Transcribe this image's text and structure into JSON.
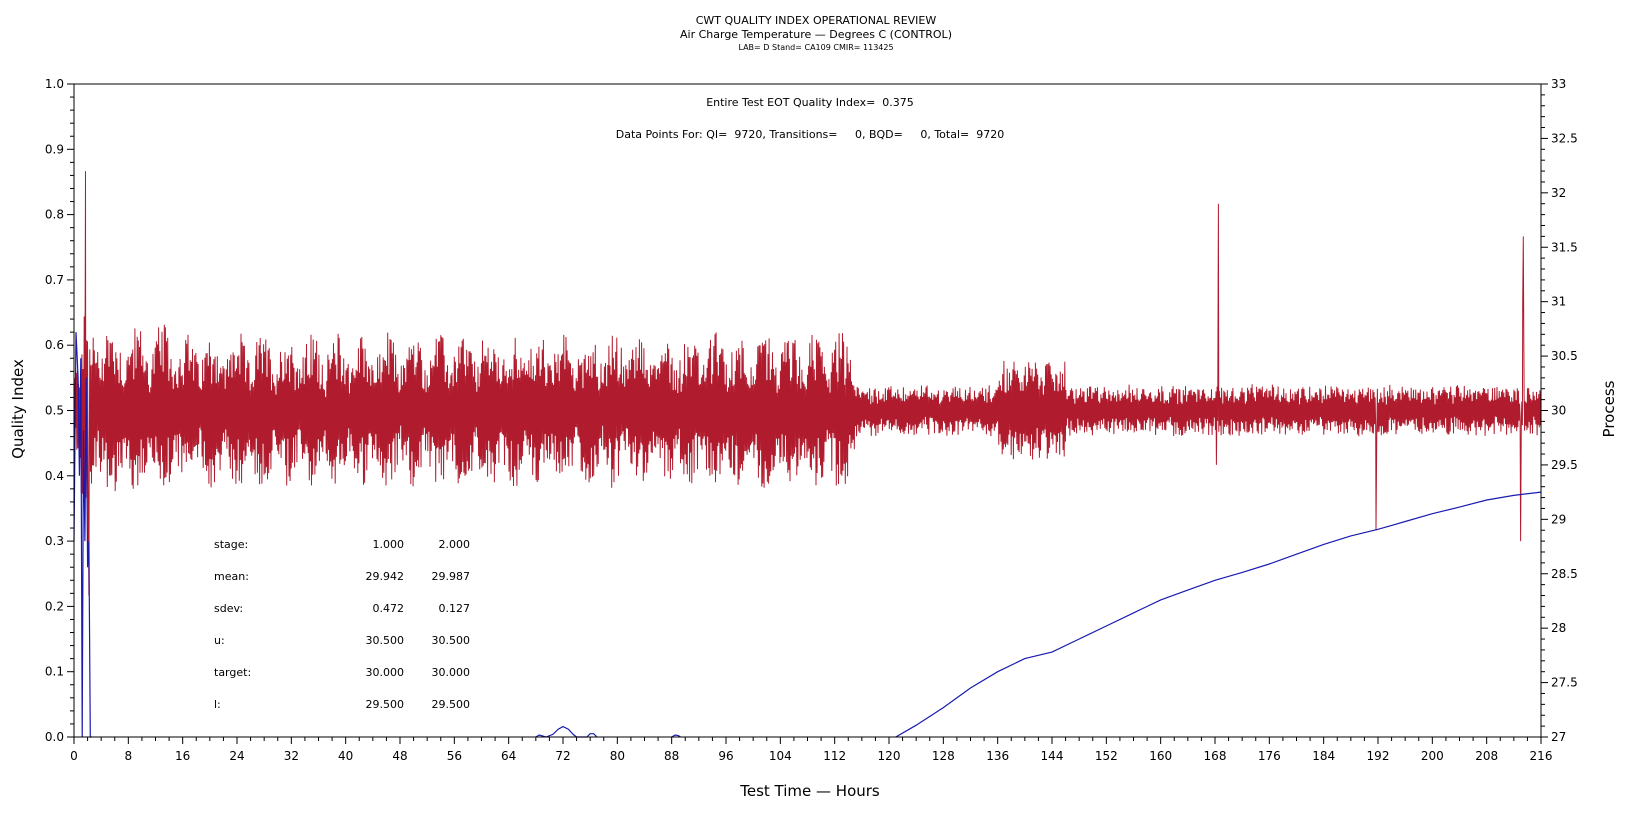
{
  "chart_data": {
    "type": "line",
    "title": "CWT QUALITY INDEX OPERATIONAL REVIEW",
    "subtitle": "Air Charge Temperature — Degrees C (CONTROL)",
    "subtitle2": "LAB= D Stand= CA109 CMIR= 113425",
    "xlabel": "Test Time — Hours",
    "ylabel": "Quality Index",
    "y2label": "Process",
    "xlim": [
      0,
      216
    ],
    "ylim": [
      0.0,
      1.0
    ],
    "y2lim": [
      27,
      33
    ],
    "x_ticks": [
      "0",
      "8",
      "16",
      "24",
      "32",
      "40",
      "48",
      "56",
      "64",
      "72",
      "80",
      "88",
      "96",
      "104",
      "112",
      "120",
      "128",
      "136",
      "144",
      "152",
      "160",
      "168",
      "176",
      "184",
      "192",
      "200",
      "208",
      "216"
    ],
    "y_ticks": [
      "0.0",
      "0.1",
      "0.2",
      "0.3",
      "0.4",
      "0.5",
      "0.6",
      "0.7",
      "0.8",
      "0.9",
      "1.0"
    ],
    "y2_ticks": [
      "27",
      "27.5",
      "28",
      "28.5",
      "29",
      "29.5",
      "30",
      "30.5",
      "31",
      "31.5",
      "32",
      "32.5",
      "33"
    ],
    "grid": false,
    "annotations": [
      "Entire Test EOT Quality Index=  0.375",
      "Data Points For: QI=  9720, Transitions=     0, BQD=     0, Total=  9720"
    ],
    "stats": {
      "rows": [
        {
          "label": "stage:",
          "v1": "1.000",
          "v2": "2.000"
        },
        {
          "label": "mean:",
          "v1": "29.942",
          "v2": "29.987"
        },
        {
          "label": "sdev:",
          "v1": "0.472",
          "v2": "0.127"
        },
        {
          "label": "u:",
          "v1": "30.500",
          "v2": "30.500"
        },
        {
          "label": "target:",
          "v1": "30.000",
          "v2": "30.000"
        },
        {
          "label": "l:",
          "v1": "29.500",
          "v2": "29.500"
        }
      ]
    },
    "series": [
      {
        "color": "#b01c2e",
        "axis": "right",
        "segments": [
          {
            "x0": 0,
            "x1": 1,
            "amp": 0.6,
            "spike_max": 32.3,
            "spike_min": 28.0
          },
          {
            "x0": 1,
            "x1": 5,
            "amp": 0.9,
            "spike_max": 32.0,
            "spike_min": 27.9
          },
          {
            "x0": 5,
            "x1": 15,
            "amp": 0.8,
            "spike_max": 31.7,
            "spike_min": 29.0
          },
          {
            "x0": 15,
            "x1": 115,
            "amp": 0.72,
            "spike_max": 31.8,
            "spike_min": 29.0
          },
          {
            "x0": 115,
            "x1": 136,
            "amp": 0.22,
            "spike_max": 30.5,
            "spike_min": 29.5
          },
          {
            "x0": 136,
            "x1": 146,
            "amp": 0.45,
            "spike_max": 30.9,
            "spike_min": 29.2
          },
          {
            "x0": 146,
            "x1": 216,
            "amp": 0.22,
            "spike_max": 30.6,
            "spike_min": 29.4
          }
        ],
        "spikes": [
          {
            "x": 168.5,
            "y": 31.9
          },
          {
            "x": 168.2,
            "y": 29.5
          },
          {
            "x": 191.7,
            "y": 28.9
          },
          {
            "x": 213.4,
            "y": 31.6
          },
          {
            "x": 213.0,
            "y": 28.8
          },
          {
            "x": 213.3,
            "y": 31.0
          },
          {
            "x": 1.7,
            "y": 32.2
          },
          {
            "x": 2.2,
            "y": 28.3
          }
        ]
      },
      {
        "color": "#1a1ab0",
        "axis": "left",
        "points": [
          [
            0.0,
            0.3
          ],
          [
            0.3,
            0.62
          ],
          [
            0.6,
            0.55
          ],
          [
            0.8,
            0.4
          ],
          [
            1.0,
            0.58
          ],
          [
            1.2,
            0.0
          ],
          [
            1.4,
            0.47
          ],
          [
            1.6,
            0.3
          ],
          [
            1.8,
            0.55
          ],
          [
            2.0,
            0.26
          ],
          [
            2.2,
            0.3
          ],
          [
            2.4,
            0.0
          ],
          [
            2.6,
            0.0
          ],
          [
            68.0,
            0.0
          ],
          [
            68.5,
            0.003
          ],
          [
            69.5,
            0.0
          ],
          [
            70.5,
            0.004
          ],
          [
            71.3,
            0.012
          ],
          [
            72.0,
            0.016
          ],
          [
            72.8,
            0.012
          ],
          [
            73.5,
            0.004
          ],
          [
            74.0,
            0.0
          ],
          [
            75.5,
            0.0
          ],
          [
            76.0,
            0.005
          ],
          [
            76.5,
            0.005
          ],
          [
            77.0,
            0.0
          ],
          [
            88.0,
            0.0
          ],
          [
            88.5,
            0.003
          ],
          [
            89.0,
            0.002
          ],
          [
            89.3,
            0.0
          ],
          [
            121.0,
            0.0
          ],
          [
            124.0,
            0.018
          ],
          [
            128.0,
            0.045
          ],
          [
            132.0,
            0.075
          ],
          [
            136.0,
            0.1
          ],
          [
            140.0,
            0.12
          ],
          [
            144.0,
            0.13
          ],
          [
            148.0,
            0.15
          ],
          [
            152.0,
            0.17
          ],
          [
            156.0,
            0.19
          ],
          [
            160.0,
            0.21
          ],
          [
            164.0,
            0.225
          ],
          [
            168.0,
            0.24
          ],
          [
            172.0,
            0.252
          ],
          [
            176.0,
            0.265
          ],
          [
            180.0,
            0.28
          ],
          [
            184.0,
            0.295
          ],
          [
            188.0,
            0.308
          ],
          [
            192.0,
            0.318
          ],
          [
            196.0,
            0.33
          ],
          [
            200.0,
            0.342
          ],
          [
            204.0,
            0.352
          ],
          [
            208.0,
            0.363
          ],
          [
            212.0,
            0.37
          ],
          [
            216.0,
            0.375
          ]
        ]
      }
    ]
  }
}
